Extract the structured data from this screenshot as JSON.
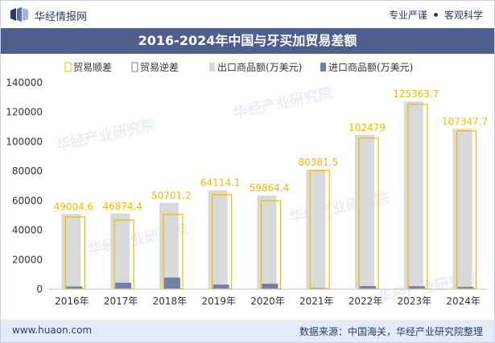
{
  "header": {
    "brand": "华经情报网",
    "tag_left": "专业严谨",
    "tag_right": "客观科学"
  },
  "title": "2016-2024年中国与牙买加贸易差额",
  "footer": {
    "site": "www.huaon.com",
    "source": "数据来源：中国海关，华经产业研究院整理"
  },
  "watermark": "华经产业研究院",
  "colors": {
    "export": "#d9d9d9",
    "import": "#6f7fa8",
    "surplus_outline": "#f5b800",
    "label": "#f5b800",
    "title_bg": "#4e5f8e"
  },
  "chart_data": {
    "type": "bar",
    "categories": [
      "2016年",
      "2017年",
      "2018年",
      "2019年",
      "2020年",
      "2021年",
      "2022年",
      "2023年",
      "2024年"
    ],
    "legend": [
      "贸易顺差",
      "贸易逆差",
      "出口商品额(万美元)",
      "进口商品额(万美元)"
    ],
    "legend_position": "top",
    "y_ticks": [
      "0",
      "20000",
      "40000",
      "60000",
      "80000",
      "100000",
      "120000",
      "140000"
    ],
    "ylim": [
      0,
      140000
    ],
    "series": [
      {
        "name": "出口商品额(万美元)",
        "values": [
          51000,
          51300,
          58600,
          67200,
          63600,
          81200,
          104600,
          127400,
          108800
        ]
      },
      {
        "name": "进口商品额(万美元)",
        "values": [
          1800,
          4400,
          7900,
          3100,
          3700,
          800,
          2100,
          2000,
          1500
        ]
      },
      {
        "name": "贸易顺差",
        "values": [
          49004.6,
          46874.4,
          50701.2,
          64114.1,
          59864.4,
          80381.5,
          102479,
          125363.7,
          107347.7
        ]
      }
    ],
    "data_labels": [
      "49004.6",
      "46874.4",
      "50701.2",
      "64114.1",
      "59864.4",
      "80381.5",
      "102479",
      "125363.7",
      "107347.7"
    ],
    "grid": false
  }
}
